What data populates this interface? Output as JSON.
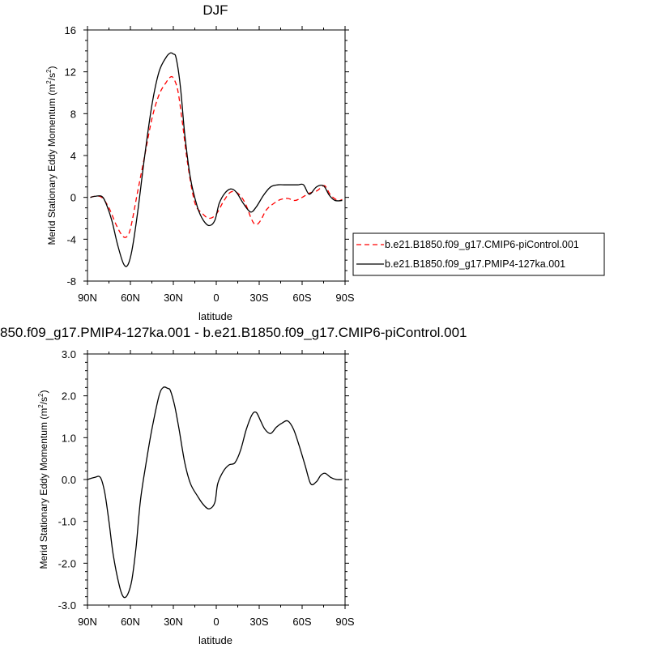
{
  "chart_data": [
    {
      "type": "line",
      "title": "DJF",
      "xlabel": "latitude",
      "ylabel": "Merid Stationary Eddy Momentum (m",
      "ylabel_sup": "2",
      "ylabel_mid": "/s",
      "ylabel_sup2": "2",
      "ylabel_end": ")",
      "xlim": [
        90,
        -90
      ],
      "ylim": [
        -8,
        16
      ],
      "x_ticks": [
        90,
        60,
        30,
        0,
        -30,
        -60,
        -90
      ],
      "x_tick_labels": [
        "90N",
        "60N",
        "30N",
        "0",
        "30S",
        "60S",
        "90S"
      ],
      "y_ticks": [
        -8,
        -4,
        0,
        4,
        8,
        12,
        16
      ],
      "y_tick_labels": [
        "-8",
        "-4",
        "0",
        "4",
        "8",
        "12",
        "16"
      ],
      "grid": false,
      "legend_position": "right",
      "series": [
        {
          "name": "b.e21.B1850.f09_g17.CMIP6-piControl.001",
          "color": "#ff0000",
          "dash": "dashed",
          "x": [
            88,
            85,
            80,
            75,
            70,
            66,
            63,
            60,
            55,
            50,
            45,
            40,
            35,
            32,
            30,
            27,
            24,
            20,
            15,
            10,
            5,
            0,
            -5,
            -10,
            -15,
            -20,
            -25,
            -28,
            -31,
            -35,
            -40,
            -45,
            -50,
            -55,
            -60,
            -65,
            -70,
            -73,
            -76,
            -80,
            -85,
            -88
          ],
          "y": [
            0.0,
            0.1,
            0.0,
            -1.0,
            -2.6,
            -3.6,
            -3.8,
            -3.0,
            0.5,
            4.0,
            7.5,
            9.8,
            11.0,
            11.5,
            11.4,
            10.3,
            7.5,
            3.2,
            -0.5,
            -1.5,
            -2.0,
            -1.6,
            -0.4,
            0.5,
            0.4,
            -0.5,
            -2.2,
            -2.6,
            -2.2,
            -1.2,
            -0.6,
            -0.2,
            -0.1,
            -0.3,
            0.0,
            0.4,
            0.6,
            0.9,
            1.1,
            0.2,
            -0.3,
            -0.2
          ]
        },
        {
          "name": "b.e21.B1850.f09_g17.PMIP4-127ka.001",
          "color": "#000000",
          "dash": "solid",
          "x": [
            88,
            85,
            80,
            77,
            73,
            69,
            65,
            62,
            59,
            55,
            50,
            45,
            40,
            35,
            32,
            30,
            28,
            25,
            22,
            18,
            13,
            9,
            5,
            1,
            -2,
            -6,
            -10,
            -14,
            -19,
            -24,
            -28,
            -33,
            -38,
            -43,
            -48,
            -53,
            -57,
            -61,
            -65,
            -70,
            -75,
            -79,
            -83,
            -88
          ],
          "y": [
            0.0,
            0.1,
            0.1,
            -0.6,
            -2.2,
            -4.5,
            -6.3,
            -6.5,
            -5.1,
            -1.5,
            4.0,
            8.8,
            12.0,
            13.4,
            13.8,
            13.7,
            13.3,
            10.5,
            6.0,
            1.8,
            -1.0,
            -2.2,
            -2.7,
            -2.2,
            -0.6,
            0.4,
            0.8,
            0.5,
            -0.6,
            -1.4,
            -0.9,
            0.2,
            1.0,
            1.2,
            1.2,
            1.2,
            1.2,
            1.2,
            0.3,
            1.0,
            1.1,
            0.2,
            -0.3,
            -0.3
          ]
        }
      ]
    },
    {
      "type": "line",
      "title": "850.f09_g17.PMIP4-127ka.001 - b.e21.B1850.f09_g17.CMIP6-piControl.001",
      "xlabel": "latitude",
      "ylabel": "Merid Stationary Eddy Momentum (m",
      "ylabel_sup": "2",
      "ylabel_mid": "/s",
      "ylabel_sup2": "2",
      "ylabel_end": ")",
      "xlim": [
        90,
        -90
      ],
      "ylim": [
        -3.0,
        3.0
      ],
      "x_ticks": [
        90,
        60,
        30,
        0,
        -30,
        -60,
        -90
      ],
      "x_tick_labels": [
        "90N",
        "60N",
        "30N",
        "0",
        "30S",
        "60S",
        "90S"
      ],
      "y_ticks": [
        -3.0,
        -2.0,
        -1.0,
        0.0,
        1.0,
        2.0,
        3.0
      ],
      "y_tick_labels": [
        "-3.0",
        "-2.0",
        "-1.0",
        "0.0",
        "1.0",
        "2.0",
        "3.0"
      ],
      "grid": false,
      "series": [
        {
          "color": "#000000",
          "dash": "solid",
          "x": [
            90,
            85,
            81,
            78,
            75,
            72,
            68,
            65,
            62,
            59,
            56,
            53,
            49,
            45,
            40,
            37,
            34,
            32,
            29,
            26,
            22,
            18,
            13,
            9,
            5,
            1,
            -1,
            -5,
            -9,
            -13,
            -17,
            -21,
            -25,
            -28,
            -31,
            -34,
            -38,
            -42,
            -46,
            -50,
            -54,
            -58,
            -62,
            -66,
            -70,
            -73,
            -76,
            -80,
            -84,
            -88
          ],
          "y": [
            0.0,
            0.05,
            0.05,
            -0.3,
            -1.0,
            -1.8,
            -2.5,
            -2.8,
            -2.75,
            -2.4,
            -1.6,
            -0.5,
            0.4,
            1.2,
            2.0,
            2.2,
            2.18,
            2.12,
            1.75,
            1.2,
            0.4,
            -0.1,
            -0.4,
            -0.6,
            -0.7,
            -0.55,
            -0.1,
            0.2,
            0.35,
            0.4,
            0.7,
            1.2,
            1.55,
            1.6,
            1.4,
            1.2,
            1.1,
            1.25,
            1.35,
            1.4,
            1.2,
            0.8,
            0.35,
            -0.1,
            -0.05,
            0.1,
            0.15,
            0.05,
            0.0,
            0.0
          ]
        }
      ]
    }
  ]
}
